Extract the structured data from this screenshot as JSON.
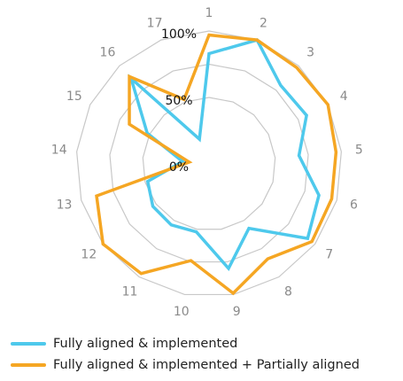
{
  "chart_data": {
    "type": "radar",
    "categories": [
      "1",
      "2",
      "3",
      "4",
      "5",
      "6",
      "7",
      "8",
      "9",
      "10",
      "11",
      "12",
      "13",
      "14",
      "15",
      "16",
      "17"
    ],
    "radial_tick_labels": [
      "0%",
      "50%",
      "100%"
    ],
    "rlim": [
      0,
      100
    ],
    "series": [
      {
        "name": "Fully aligned & implemented",
        "color": "#4ec9ec",
        "values": [
          83,
          100,
          80,
          82,
          68,
          86,
          93,
          57,
          80,
          52,
          54,
          53,
          48,
          20,
          52,
          87,
          20
        ]
      },
      {
        "name": "Fully aligned & implemented + Partially aligned",
        "color": "#f5a623",
        "values": [
          97,
          100,
          98,
          100,
          96,
          96,
          97,
          84,
          99,
          74,
          97,
          100,
          88,
          15,
          67,
          89,
          52
        ]
      }
    ],
    "grid": true,
    "legend_position": "bottom-left"
  },
  "legend": {
    "items": [
      {
        "label": "Fully aligned & implemented",
        "color": "#4ec9ec"
      },
      {
        "label": "Fully aligned & implemented + Partially aligned",
        "color": "#f5a623"
      }
    ]
  }
}
